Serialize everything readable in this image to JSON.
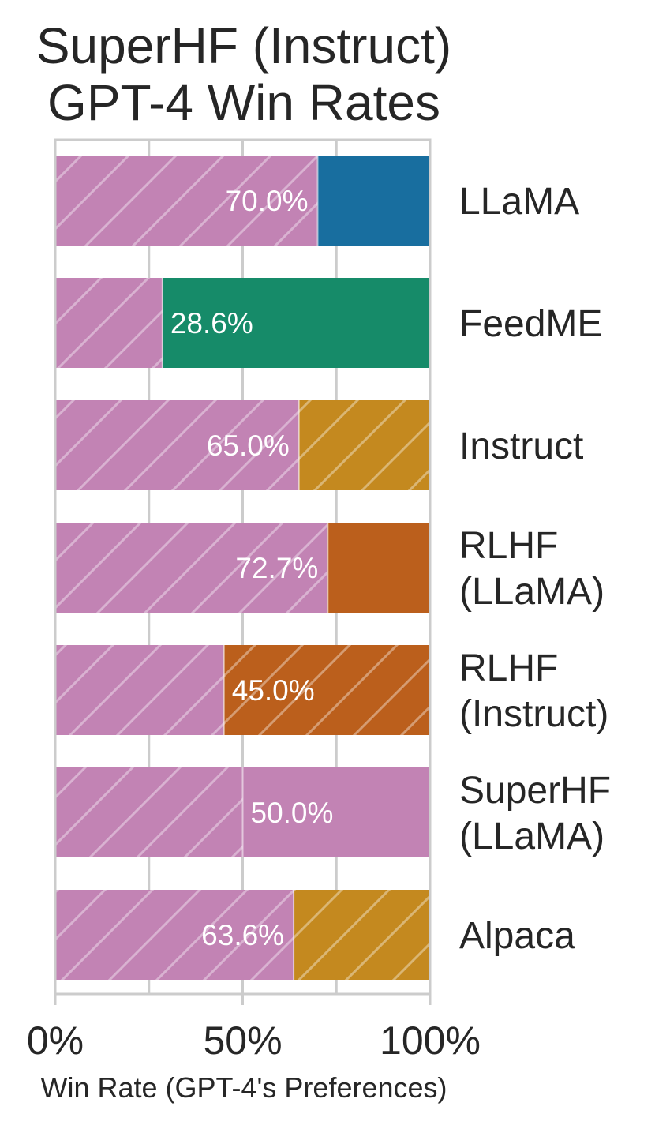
{
  "chart_data": {
    "type": "bar",
    "orientation": "horizontal",
    "stacked": true,
    "title_lines": [
      "SuperHF (Instruct)",
      "GPT-4 Win Rates"
    ],
    "xlabel": "Win Rate (GPT-4's Preferences)",
    "xlim": [
      0,
      100
    ],
    "xticks": [
      0,
      50,
      100
    ],
    "xtick_labels": [
      "0%",
      "50%",
      "100%"
    ],
    "grid": true,
    "categories": [
      [
        "LLaMA"
      ],
      [
        "FeedME"
      ],
      [
        "Instruct"
      ],
      [
        "RLHF",
        "(LLaMA)"
      ],
      [
        "RLHF",
        "(Instruct)"
      ],
      [
        "SuperHF",
        "(LLaMA)"
      ],
      [
        "Alpaca"
      ]
    ],
    "series": [
      {
        "values": [
          70.0,
          28.6,
          65.0,
          72.7,
          45.0,
          50.0,
          63.6
        ],
        "labels": [
          "70.0%",
          "28.6%",
          "65.0%",
          "72.7%",
          "45.0%",
          "50.0%",
          "63.6%"
        ],
        "color": "#c283b4",
        "hatched": true
      }
    ],
    "opponent_colors": [
      "#186e9f",
      "#168b69",
      "#c4891f",
      "#bb5f1c",
      "#bb5f1c",
      "#c283b4",
      "#c4891f"
    ],
    "opponent_hatched": [
      false,
      false,
      true,
      false,
      true,
      false,
      true
    ]
  }
}
